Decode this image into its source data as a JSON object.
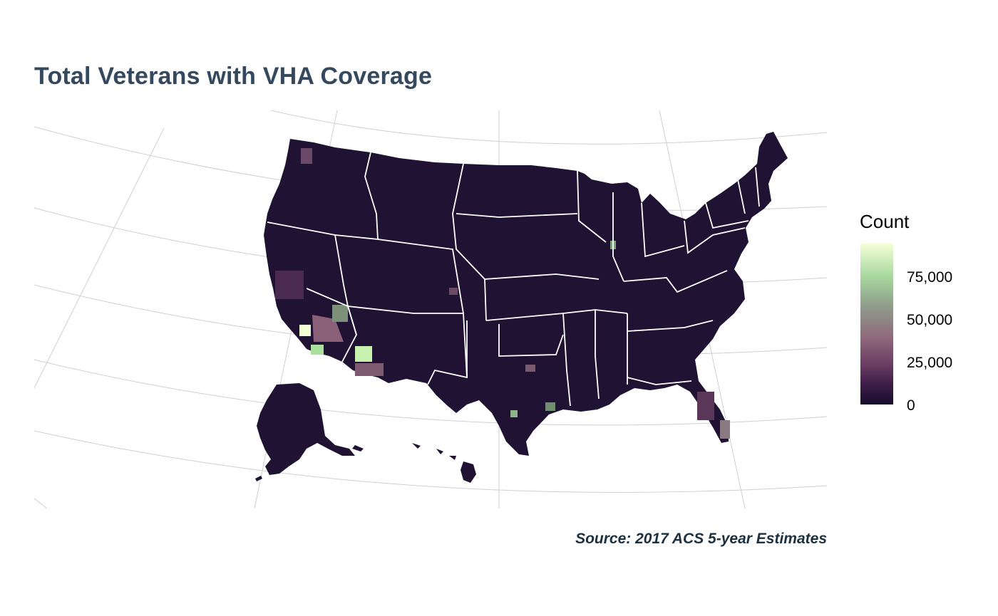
{
  "title": "Total Veterans with VHA Coverage",
  "caption": "Source: 2017 ACS 5-year Estimates",
  "legend": {
    "title": "Count",
    "labels": [
      "75,000",
      "50,000",
      "25,000",
      "0"
    ],
    "scale_low_color": "#170d2b",
    "scale_high_color": "#f4ffd6"
  },
  "colors": {
    "title": "#34495e",
    "caption": "#1c3040",
    "land_fill": "#1f1232",
    "state_border": "#ffffff",
    "graticule": "#cfcfcf"
  },
  "map_data": {
    "type": "choropleth",
    "measure": "Veterans with VHA coverage by county",
    "scale_range": [
      0,
      100000
    ],
    "hotspots": [
      {
        "value": 98000
      },
      {
        "value": 90000
      },
      {
        "value": 75000
      },
      {
        "value": 45000
      },
      {
        "value": 38000
      },
      {
        "value": 34000
      },
      {
        "value": 55000
      },
      {
        "value": 50000
      },
      {
        "value": 60000
      },
      {
        "value": 35000
      }
    ]
  }
}
